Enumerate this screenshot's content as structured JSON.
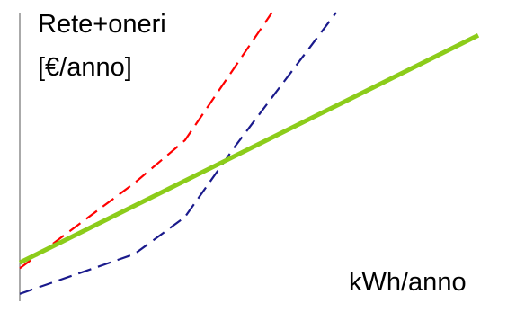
{
  "chart_data": {
    "type": "line",
    "ylabel_lines": [
      "Rete+oneri",
      "[€/anno]"
    ],
    "xlabel": "kWh/anno",
    "xlim": [
      0,
      100
    ],
    "ylim": [
      0,
      100
    ],
    "grid": false,
    "legend": "none",
    "axes_shown": [
      "left"
    ],
    "tick_labels_shown": false,
    "series": [
      {
        "color": "#ff0000",
        "style": "dashed",
        "x": [
          0,
          25,
          36,
          55
        ],
        "y": [
          10,
          40,
          55,
          100
        ]
      },
      {
        "color": "#1a1a8c",
        "style": "dashed",
        "x": [
          0,
          25,
          36,
          47,
          69
        ],
        "y": [
          1,
          15,
          28,
          53,
          100
        ]
      },
      {
        "color": "#8ccc1a",
        "style": "solid",
        "x": [
          0,
          100
        ],
        "y": [
          12,
          92
        ]
      }
    ]
  }
}
